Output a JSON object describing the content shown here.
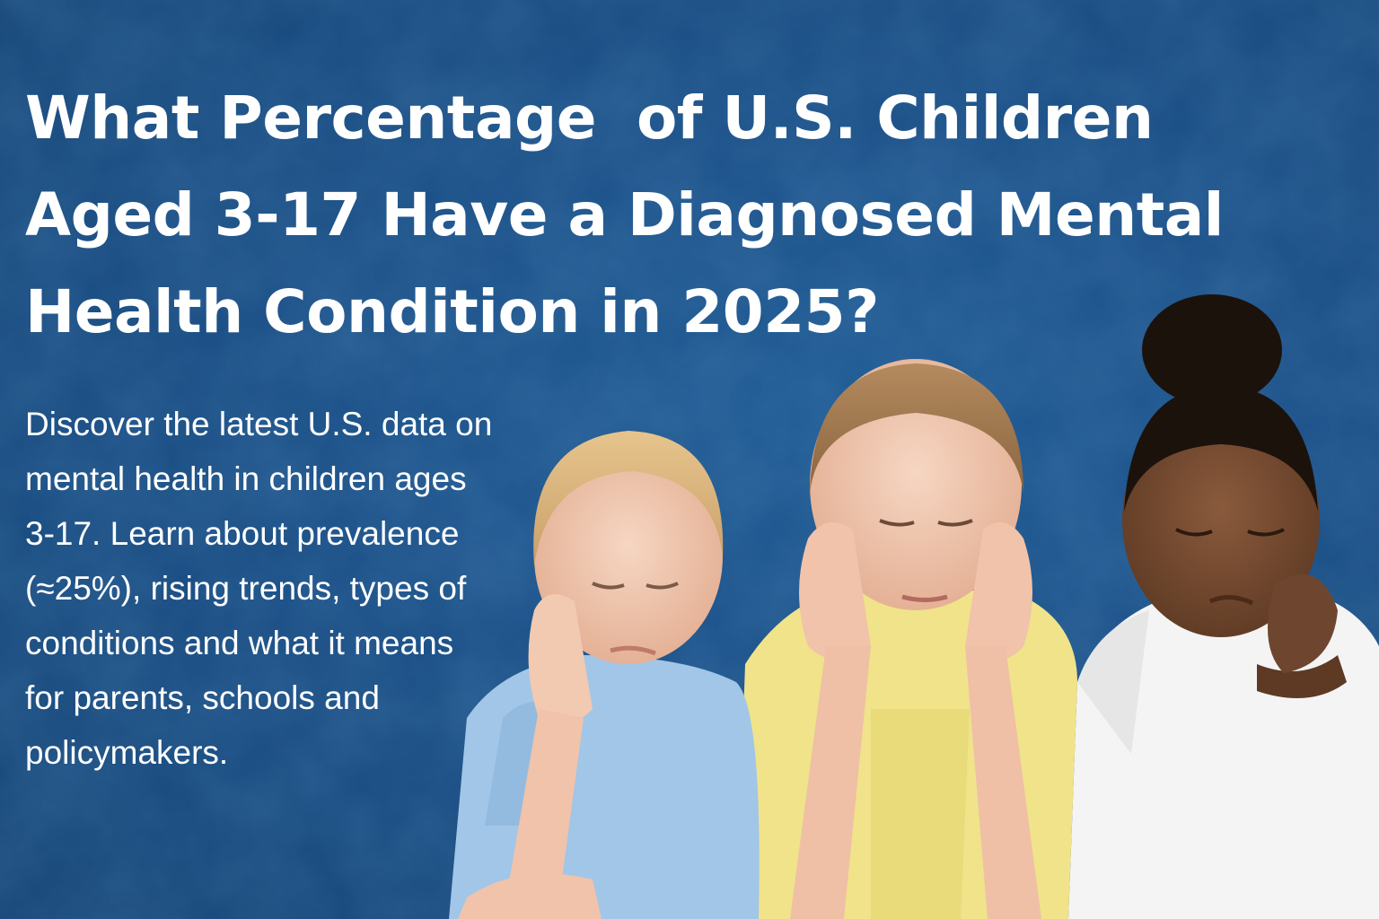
{
  "headline": {
    "lines": [
      "What Percentage  of U.S. Children",
      "Aged 3-17 Have a Diagnosed Mental",
      "Health Condition in 2025?"
    ]
  },
  "description": {
    "lines": [
      "Discover the latest U.S. data on",
      "mental health in children ages",
      "3-17. Learn about prevalence",
      "(≈25%), rising trends, types of",
      "conditions and what it means",
      "for parents, schools and",
      "policymakers."
    ]
  },
  "colors": {
    "background": "#1a4f86",
    "text": "#ffffff",
    "shirt_blue": "#9ec4e6",
    "shirt_yellow": "#f1e58e",
    "shirt_white": "#f7f7f7"
  },
  "image": {
    "subject": "three-sad-children-photo"
  }
}
